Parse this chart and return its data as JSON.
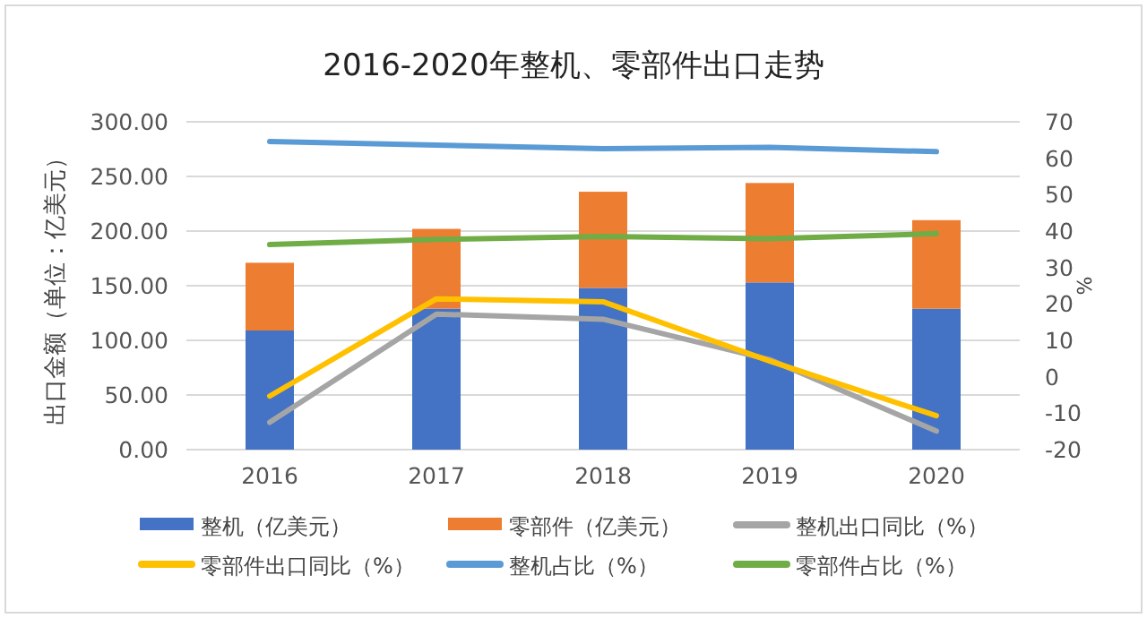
{
  "chart_data": {
    "type": "bar",
    "title": "2016-2020年整机、零部件出口走势",
    "ylabel": "出口金额（单位：亿美元）",
    "y2label": "%",
    "categories": [
      "2016",
      "2017",
      "2018",
      "2019",
      "2020"
    ],
    "stacked": true,
    "grid": "y",
    "legend": "bottom",
    "ylim": [
      0,
      300
    ],
    "yticks": [
      {
        "value": 0,
        "label": "0.00"
      },
      {
        "value": 50,
        "label": "50.00"
      },
      {
        "value": 100,
        "label": "100.00"
      },
      {
        "value": 150,
        "label": "150.00"
      },
      {
        "value": 200,
        "label": "200.00"
      },
      {
        "value": 250,
        "label": "250.00"
      },
      {
        "value": 300,
        "label": "300.00"
      }
    ],
    "y2lim": [
      -20,
      70
    ],
    "y2ticks": [
      -20,
      -10,
      0,
      10,
      20,
      30,
      40,
      50,
      60,
      70
    ],
    "series": [
      {
        "name": "整机（亿美元）",
        "color": "#4472c4",
        "values": [
          109,
          129,
          148,
          153,
          129
        ]
      },
      {
        "name": "零部件（亿美元）",
        "color": "#ed7d31",
        "values": [
          62,
          73,
          88,
          91,
          81
        ]
      },
      {
        "name": "整机出口同比（%）",
        "type": "line",
        "axis": "y2",
        "color": "#a5a5a5",
        "values": [
          -12.5,
          17.2,
          15.8,
          4.7,
          -14.9
        ]
      },
      {
        "name": "零部件出口同比（%）",
        "type": "line",
        "axis": "y2",
        "color": "#ffc000",
        "values": [
          -5.3,
          21.4,
          20.6,
          4.3,
          -10.7
        ]
      },
      {
        "name": "整机占比（%）",
        "type": "line",
        "axis": "y2",
        "color": "#5b9bd5",
        "values": [
          64.6,
          63.6,
          62.6,
          63.0,
          61.8
        ]
      },
      {
        "name": "零部件占比（%）",
        "type": "line",
        "axis": "y2",
        "color": "#70ad47",
        "values": [
          36.3,
          37.7,
          38.5,
          37.9,
          39.3
        ]
      }
    ]
  }
}
